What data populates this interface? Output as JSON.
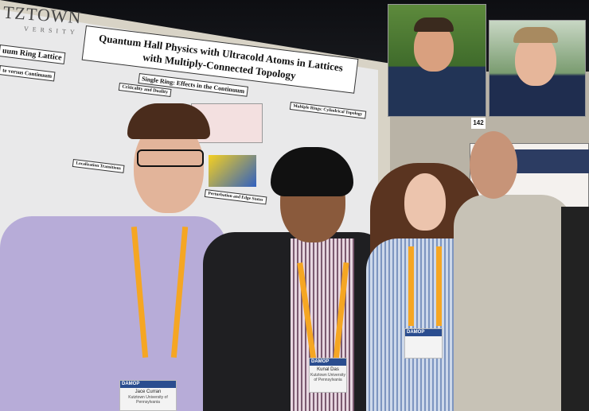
{
  "poster": {
    "logo": "TZTOWN",
    "logo_sub": "VERSITY",
    "title": "Quantum Hall Physics with Ultracold Atoms in Lattices with Multiply-Connected Topology",
    "sections": [
      "uum Ring Lattice",
      "te versus Continuum",
      "Single Ring: Effects in the Continuum",
      "Criticality and Duality",
      "Multiple Rings: Cylindrical Topology",
      "Perturbation and Edge States",
      "Localization Transitions"
    ]
  },
  "booth_number": "142",
  "badges": [
    {
      "event": "DAMOP",
      "name": "Jace Curran",
      "org": "Kutztown University of Pennsylvania"
    },
    {
      "event": "DAMOP",
      "name": "Kunal Das",
      "org": "Kutztown University of Pennsylvania"
    },
    {
      "event": "DAMOP",
      "name": "",
      "org": ""
    }
  ]
}
